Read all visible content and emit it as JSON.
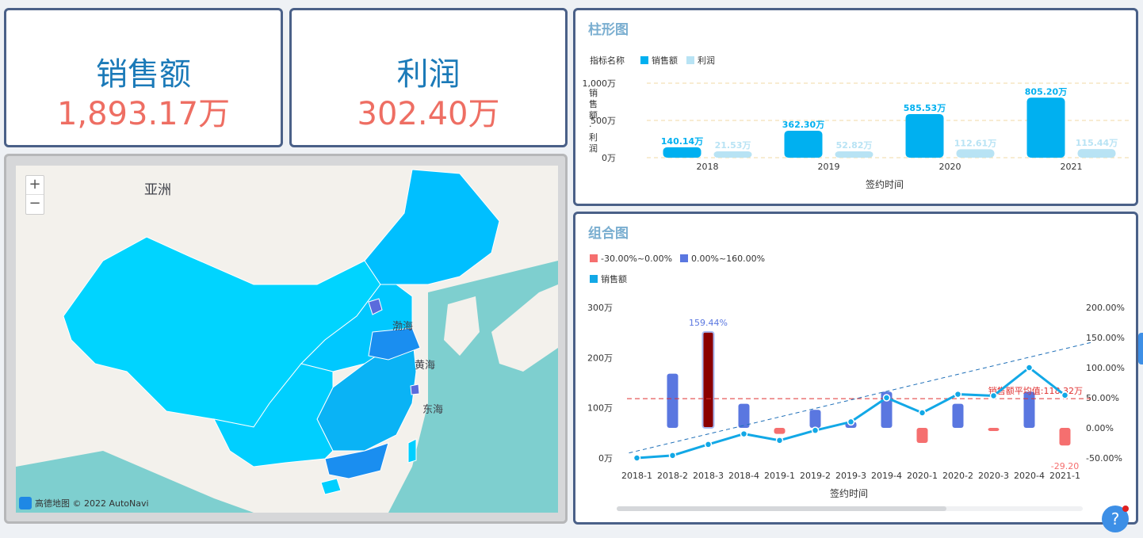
{
  "kpis": {
    "sales": {
      "title": "销售额",
      "value": "1,893.17万"
    },
    "profit": {
      "title": "利润",
      "value": "302.40万"
    }
  },
  "map": {
    "labels": {
      "asia": "亚洲",
      "bohai": "渤海",
      "yellow_sea": "黄海",
      "east_sea": "东海"
    },
    "zoom_in": "+",
    "zoom_out": "−",
    "credit": "高德地图 © 2022 AutoNavi",
    "colors": {
      "sea": "#7ecfcf",
      "land": "#f3f1ec",
      "region": "#00cfff",
      "region_dark": "#0ab3f5",
      "region_darker": "#1a8ef0",
      "highlight": "#5a6bdc"
    }
  },
  "help": {
    "label": "?"
  },
  "chart_data": [
    {
      "type": "bar",
      "title": "柱形图",
      "legend_title": "指标名称",
      "categories": [
        "2018",
        "2019",
        "2020",
        "2021"
      ],
      "series": [
        {
          "name": "销售额",
          "values": [
            140.14,
            362.3,
            585.53,
            805.2
          ],
          "labels": [
            "140.14万",
            "362.30万",
            "585.53万",
            "805.20万"
          ],
          "color": "#00b0f0"
        },
        {
          "name": "利润",
          "values": [
            21.53,
            52.82,
            112.61,
            115.44
          ],
          "labels": [
            "21.53万",
            "52.82万",
            "112.61万",
            "115.44万"
          ],
          "color": "#b8e3f4"
        }
      ],
      "ylim": [
        0,
        1000
      ],
      "yticks": [
        "0万",
        "500万",
        "1,000万"
      ],
      "ytick_values": [
        0,
        500,
        1000
      ],
      "xlabel": "签约时间",
      "ylabel": "销售额·利润",
      "grid": true,
      "legend_position": "top-left"
    },
    {
      "type": "bar",
      "title": "组合图",
      "legend": [
        {
          "name": "-30.00%~0.00%",
          "color": "#f56f6f"
        },
        {
          "name": "0.00%~160.00%",
          "color": "#5a77e0"
        },
        {
          "name": "销售额",
          "color": "#12a8e6"
        }
      ],
      "categories": [
        "2018-1",
        "2018-2",
        "2018-3",
        "2018-4",
        "2019-1",
        "2019-2",
        "2019-3",
        "2019-4",
        "2020-1",
        "2020-2",
        "2020-3",
        "2020-4",
        "2021-1"
      ],
      "bar_series": {
        "name": "增长率",
        "values": [
          null,
          90,
          159.44,
          40,
          -10,
          30,
          10,
          60,
          -25,
          40,
          -5,
          60,
          -29.2
        ]
      },
      "line_series": {
        "name": "销售额",
        "values": [
          0,
          5,
          27,
          48,
          35,
          55,
          72,
          120,
          90,
          127,
          124,
          180,
          125
        ]
      },
      "trend_line": {
        "style": "dashed",
        "color": "#1e6fb8"
      },
      "bar_label": "159.44%",
      "neg_label": "-29.20",
      "mean_line": {
        "label": "销售额平均值:118.32万",
        "value": 118.32,
        "color": "#e03030"
      },
      "y_left": {
        "ticks": [
          "0万",
          "100万",
          "200万",
          "300万"
        ],
        "values": [
          0,
          100,
          200,
          300
        ]
      },
      "y_right": {
        "ticks": [
          "-50.00%",
          "0.00%",
          "50.00%",
          "100.00%",
          "150.00%",
          "200.00%"
        ],
        "values": [
          -50,
          0,
          50,
          100,
          150,
          200
        ]
      },
      "xlabel": "签约时间",
      "legend_position": "top-left"
    }
  ]
}
